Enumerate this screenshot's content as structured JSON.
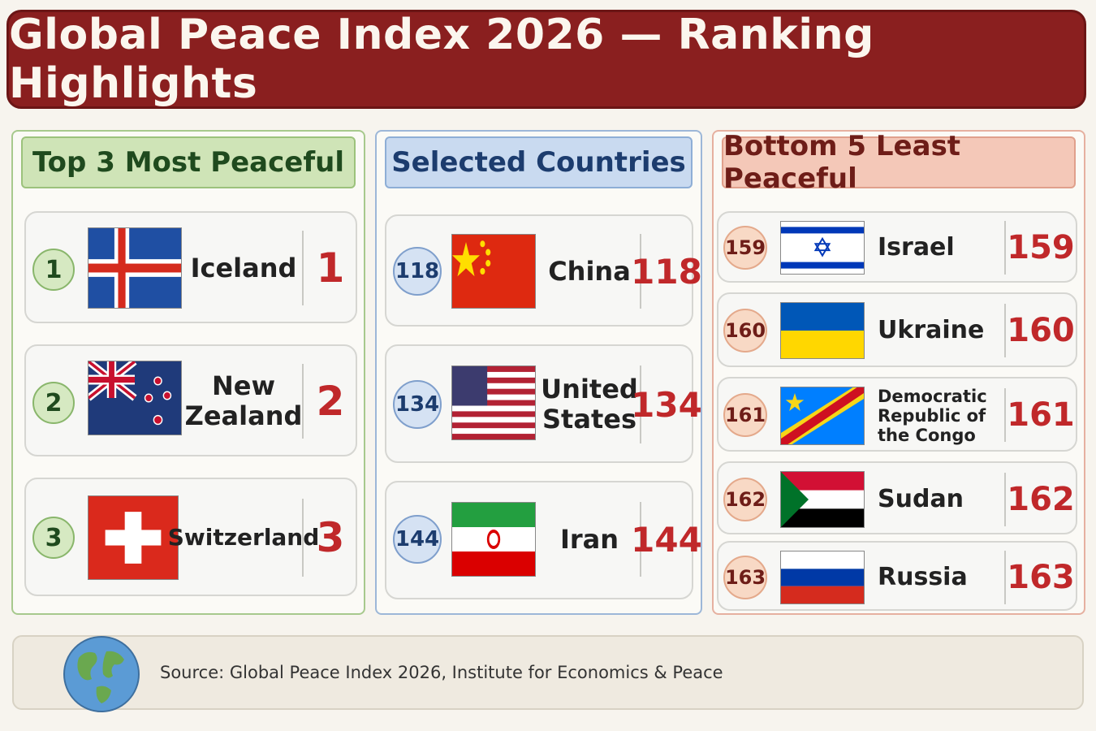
{
  "title": "Global Peace Index 2026 — Ranking Highlights",
  "columns": {
    "top": {
      "heading": "Top 3 Most Peaceful",
      "entries": [
        {
          "badge": "1",
          "country": "Iceland",
          "rank": "1",
          "flag": "iceland-flag"
        },
        {
          "badge": "2",
          "country": "New Zealand",
          "rank": "2",
          "flag": "new-zealand-flag"
        },
        {
          "badge": "3",
          "country": "Switzerland",
          "rank": "3",
          "flag": "switzerland-flag"
        }
      ]
    },
    "selected": {
      "heading": "Selected Countries",
      "entries": [
        {
          "badge": "118",
          "country": "China",
          "rank": "118",
          "flag": "china-flag"
        },
        {
          "badge": "134",
          "country": "United States",
          "rank": "134",
          "flag": "united-states-flag"
        },
        {
          "badge": "144",
          "country": "Iran",
          "rank": "144",
          "flag": "iran-flag"
        }
      ]
    },
    "bottom": {
      "heading": "Bottom 5 Least Peaceful",
      "entries": [
        {
          "badge": "159",
          "country": "Israel",
          "rank": "159",
          "flag": "israel-flag"
        },
        {
          "badge": "160",
          "country": "Ukraine",
          "rank": "160",
          "flag": "ukraine-flag"
        },
        {
          "badge": "161",
          "country": "Democratic Republic of the Congo",
          "rank": "161",
          "flag": "dr-congo-flag"
        },
        {
          "badge": "162",
          "country": "Sudan",
          "rank": "162",
          "flag": "sudan-flag"
        },
        {
          "badge": "163",
          "country": "Russia",
          "rank": "163",
          "flag": "russia-flag"
        }
      ]
    }
  },
  "footer": {
    "source": "Source: Global Peace Index 2026, Institute for Economics & Peace",
    "icon": "globe-icon"
  },
  "colors": {
    "title_bg": "#8a1f1f",
    "rank_red": "#c0282a",
    "top_accent": "#cfe4b7",
    "selected_accent": "#c9daf0",
    "bottom_accent": "#f4c8b8"
  }
}
